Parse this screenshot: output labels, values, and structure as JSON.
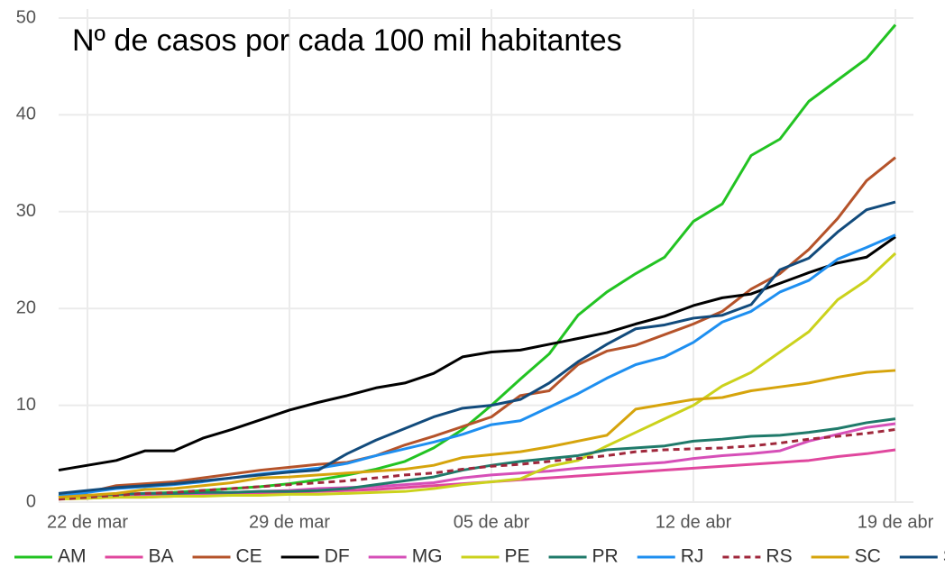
{
  "chart_data": {
    "type": "line",
    "title": "Nº de casos por cada 100 mil habitantes",
    "categories": [
      null,
      "22 de mar",
      null,
      null,
      null,
      null,
      null,
      null,
      "29 de mar",
      null,
      null,
      null,
      null,
      null,
      null,
      "05 de abr",
      null,
      null,
      null,
      null,
      null,
      null,
      "12 de abr",
      null,
      null,
      null,
      null,
      null,
      null,
      "19 de abr"
    ],
    "ylim": [
      0,
      50
    ],
    "yticks": [
      0,
      10,
      20,
      30,
      40,
      50
    ],
    "grid": true,
    "legend": "bottom",
    "series": [
      {
        "name": "AM",
        "color": "#22c322",
        "values": [
          0.5,
          0.6,
          0.7,
          0.9,
          1.0,
          1.2,
          1.4,
          1.6,
          1.9,
          2.3,
          2.8,
          3.4,
          4.2,
          5.6,
          7.5,
          10,
          12.7,
          15.3,
          19.3,
          21.7,
          23.6,
          25.3,
          29.0,
          30.8,
          35.8,
          37.5,
          41.4,
          43.6,
          45.8,
          49.3
        ]
      },
      {
        "name": "BA",
        "color": "#e0479e",
        "values": [
          0.3,
          0.4,
          0.5,
          0.5,
          0.6,
          0.7,
          0.8,
          0.9,
          1.0,
          1.1,
          1.2,
          1.3,
          1.5,
          1.7,
          1.9,
          2.1,
          2.3,
          2.5,
          2.7,
          2.9,
          3.1,
          3.3,
          3.5,
          3.7,
          3.9,
          4.1,
          4.3,
          4.7,
          5.0,
          5.4
        ]
      },
      {
        "name": "CE",
        "color": "#b5532a",
        "values": [
          0.5,
          1.0,
          1.7,
          1.9,
          2.1,
          2.5,
          2.9,
          3.3,
          3.6,
          3.9,
          4.1,
          4.8,
          5.9,
          6.8,
          7.8,
          8.8,
          11.0,
          11.5,
          14.2,
          15.6,
          16.2,
          17.3,
          18.4,
          19.7,
          22.0,
          23.6,
          26.1,
          29.3,
          33.2,
          35.6
        ]
      },
      {
        "name": "DF",
        "color": "#000000",
        "values": [
          3.3,
          3.8,
          4.3,
          5.3,
          5.3,
          6.6,
          7.5,
          8.5,
          9.5,
          10.3,
          11.0,
          11.8,
          12.3,
          13.3,
          15.0,
          15.5,
          15.7,
          16.3,
          16.9,
          17.5,
          18.4,
          19.2,
          20.3,
          21.1,
          21.5,
          22.6,
          23.7,
          24.7,
          25.3,
          27.4
        ]
      },
      {
        "name": "MG",
        "color": "#d64fb8",
        "values": [
          0.4,
          0.5,
          0.6,
          0.7,
          0.8,
          0.9,
          1.0,
          1.1,
          1.2,
          1.4,
          1.5,
          1.6,
          1.8,
          2.0,
          2.5,
          2.8,
          3.0,
          3.2,
          3.5,
          3.7,
          3.9,
          4.1,
          4.5,
          4.8,
          5.0,
          5.3,
          6.3,
          7.0,
          7.7,
          8.1
        ]
      },
      {
        "name": "PE",
        "color": "#cbd21c",
        "values": [
          0.3,
          0.4,
          0.5,
          0.5,
          0.6,
          0.6,
          0.7,
          0.7,
          0.8,
          0.8,
          0.9,
          1.0,
          1.1,
          1.4,
          1.8,
          2.1,
          2.4,
          3.7,
          4.3,
          5.8,
          7.2,
          8.6,
          10.0,
          12.0,
          13.4,
          15.5,
          17.6,
          20.9,
          22.9,
          25.7
        ]
      },
      {
        "name": "PR",
        "color": "#1f7a6a",
        "values": [
          0.7,
          0.7,
          0.8,
          0.9,
          0.9,
          1.0,
          1.0,
          1.1,
          1.1,
          1.2,
          1.4,
          1.8,
          2.2,
          2.6,
          3.3,
          3.8,
          4.2,
          4.5,
          4.8,
          5.4,
          5.6,
          5.8,
          6.3,
          6.5,
          6.8,
          6.9,
          7.2,
          7.6,
          8.2,
          8.6
        ]
      },
      {
        "name": "RJ",
        "color": "#1e8ff0",
        "values": [
          0.6,
          1.0,
          1.4,
          1.6,
          1.8,
          2.1,
          2.5,
          2.9,
          3.2,
          3.5,
          4.0,
          4.8,
          5.5,
          6.2,
          7.0,
          8.0,
          8.4,
          9.8,
          11.2,
          12.8,
          14.2,
          15.0,
          16.5,
          18.6,
          19.7,
          21.7,
          22.9,
          25.1,
          26.3,
          27.6
        ]
      },
      {
        "name": "RS",
        "color": "#a0283c",
        "dashed": true,
        "values": [
          0.3,
          0.5,
          0.7,
          0.9,
          1.0,
          1.2,
          1.4,
          1.6,
          1.8,
          2.0,
          2.2,
          2.5,
          2.8,
          3.0,
          3.4,
          3.7,
          3.9,
          4.2,
          4.5,
          4.8,
          5.2,
          5.4,
          5.5,
          5.6,
          5.8,
          6.1,
          6.5,
          6.8,
          7.1,
          7.5
        ]
      },
      {
        "name": "SC",
        "color": "#d6a40c",
        "values": [
          0.5,
          0.7,
          0.9,
          1.3,
          1.4,
          1.7,
          2.0,
          2.5,
          2.6,
          2.8,
          3.0,
          3.2,
          3.4,
          3.8,
          4.6,
          4.9,
          5.2,
          5.7,
          6.3,
          6.9,
          9.6,
          10.1,
          10.6,
          10.8,
          11.5,
          11.9,
          12.3,
          12.9,
          13.4,
          13.6
        ]
      },
      {
        "name": "SP",
        "color": "#124b7c",
        "values": [
          0.9,
          1.2,
          1.5,
          1.7,
          1.9,
          2.2,
          2.5,
          2.8,
          3.1,
          3.3,
          5.0,
          6.4,
          7.6,
          8.8,
          9.7,
          10.0,
          10.6,
          12.3,
          14.5,
          16.3,
          17.9,
          18.3,
          19.0,
          19.3,
          20.4,
          24.0,
          25.2,
          27.9,
          30.2,
          31.0
        ]
      }
    ]
  }
}
